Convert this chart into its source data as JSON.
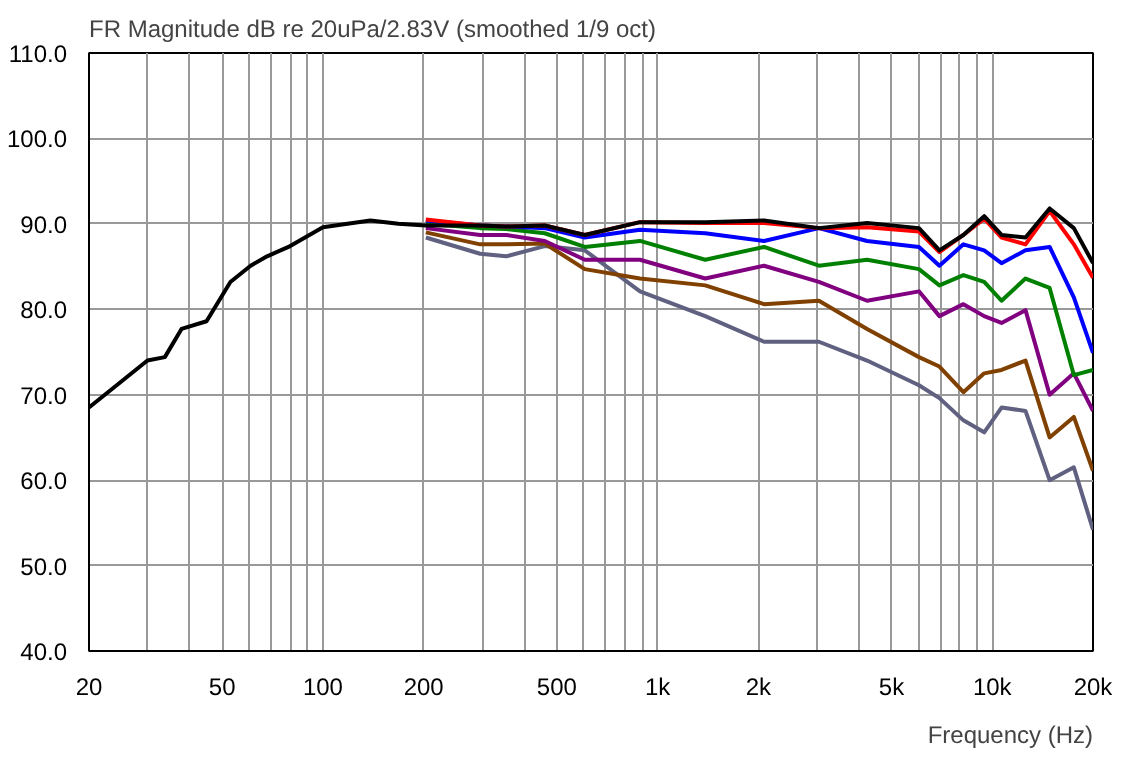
{
  "chart_data": {
    "type": "line",
    "title": "FR Magnitude dB re 20uPa/2.83V (smoothed 1/9 oct)",
    "xlabel": "Frequency (Hz)",
    "log": "x",
    "grid": true,
    "marker": "none",
    "line_style": "solid",
    "xlim": [
      20,
      20000
    ],
    "ylim": [
      40,
      110
    ],
    "xticks": [
      20,
      {
        "value": 30,
        "label": null
      },
      {
        "value": 40,
        "label": null
      },
      50,
      {
        "value": 60,
        "label": null
      },
      {
        "value": 70,
        "label": null
      },
      {
        "value": 80,
        "label": null
      },
      {
        "value": 90,
        "label": null
      },
      100,
      200,
      {
        "value": 300,
        "label": null
      },
      {
        "value": 400,
        "label": null
      },
      500,
      {
        "value": 600,
        "label": null
      },
      {
        "value": 700,
        "label": null
      },
      {
        "value": 800,
        "label": null
      },
      {
        "value": 900,
        "label": null
      },
      {
        "value": 1000,
        "label": "1k"
      },
      {
        "value": 2000,
        "label": "2k"
      },
      {
        "value": 3000,
        "label": null
      },
      {
        "value": 4000,
        "label": null
      },
      {
        "value": 5000,
        "label": "5k"
      },
      {
        "value": 6000,
        "label": null
      },
      {
        "value": 7000,
        "label": null
      },
      {
        "value": 8000,
        "label": null
      },
      {
        "value": 9000,
        "label": null
      },
      {
        "value": 10000,
        "label": "10k"
      },
      {
        "value": 20000,
        "label": "20k"
      }
    ],
    "yticks": [
      {
        "value": 40,
        "label": "40.0"
      },
      {
        "value": 50,
        "label": "50.0"
      },
      {
        "value": 60,
        "label": "60.0"
      },
      {
        "value": 70,
        "label": "70.0"
      },
      {
        "value": 80,
        "label": "80.0"
      },
      {
        "value": 90,
        "label": "90.0"
      },
      {
        "value": 100,
        "label": "100.0"
      },
      {
        "value": 110,
        "label": "110.0"
      }
    ],
    "x": [
      203,
      295,
      353,
      460,
      606,
      886,
      1388,
      2080,
      3034,
      4226,
      6040,
      6952,
      8200,
      9460,
      10660,
      12570,
      14840,
      17530,
      20000
    ],
    "series": [
      {
        "color": "#606080",
        "values": [
          88.4,
          86.5,
          86.2,
          87.4,
          86.9,
          82.1,
          79.2,
          76.2,
          76.2,
          74.0,
          71.1,
          69.6,
          67.0,
          65.6,
          68.5,
          68.1,
          60.0,
          61.5,
          54.2
        ]
      },
      {
        "color": "#804000",
        "values": [
          89.0,
          87.6,
          87.6,
          87.7,
          84.7,
          83.6,
          82.8,
          80.6,
          81.0,
          77.7,
          74.4,
          73.3,
          70.3,
          72.5,
          72.9,
          74.0,
          65.0,
          67.4,
          61.1
        ]
      },
      {
        "color": "#800080",
        "values": [
          89.5,
          88.7,
          88.7,
          88.0,
          85.8,
          85.8,
          83.6,
          85.1,
          83.2,
          81.0,
          82.1,
          79.2,
          80.6,
          79.2,
          78.4,
          79.9,
          70.0,
          72.5,
          68.1
        ]
      },
      {
        "color": "#008000",
        "values": [
          90.0,
          89.5,
          89.4,
          88.9,
          87.3,
          88.0,
          85.8,
          87.3,
          85.1,
          85.8,
          84.7,
          82.8,
          84.0,
          83.2,
          81.0,
          83.6,
          82.5,
          72.3,
          72.9
        ]
      },
      {
        "color": "#0000ff",
        "values": [
          90.4,
          89.8,
          89.7,
          89.5,
          88.4,
          89.3,
          88.9,
          88.0,
          89.5,
          88.0,
          87.3,
          85.1,
          87.6,
          86.9,
          85.4,
          86.9,
          87.3,
          81.4,
          74.9
        ]
      },
      {
        "color": "#ff0000",
        "values": [
          90.5,
          89.8,
          89.7,
          89.8,
          88.7,
          90.2,
          90.1,
          90.1,
          89.5,
          89.6,
          89.1,
          86.7,
          88.7,
          90.6,
          88.4,
          87.6,
          91.5,
          87.6,
          83.7
        ]
      },
      {
        "color": "#000000",
        "x": [
          20,
          29.9,
          33.7,
          37.8,
          44.9,
          52.9,
          60.8,
          68.1,
          78.9,
          100,
          138.6,
          168,
          203,
          295,
          353,
          460,
          606,
          886,
          1388,
          2080,
          3034,
          4226,
          6040,
          6952,
          8200,
          9460,
          10660,
          12570,
          14840,
          17530,
          20000
        ],
        "values": [
          68.5,
          74.0,
          74.4,
          77.7,
          78.6,
          83.2,
          85.1,
          86.2,
          87.3,
          89.6,
          90.4,
          90.0,
          89.8,
          89.8,
          89.7,
          89.8,
          88.7,
          90.2,
          90.2,
          90.4,
          89.5,
          90.1,
          89.5,
          86.9,
          88.7,
          90.9,
          88.7,
          88.4,
          91.8,
          89.5,
          85.4
        ]
      }
    ]
  }
}
